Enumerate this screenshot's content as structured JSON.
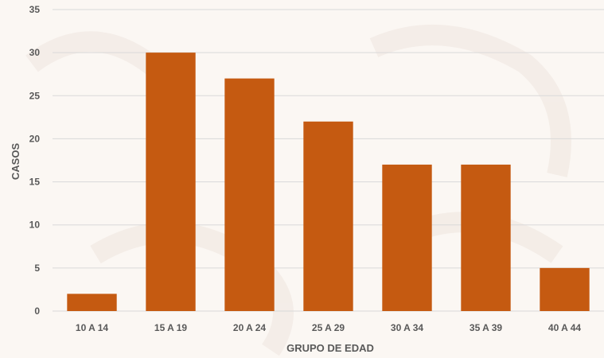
{
  "chart_data": {
    "type": "bar",
    "categories": [
      "10 A 14",
      "15 A 19",
      "20 A 24",
      "25 A 29",
      "30 A 34",
      "35 A 39",
      "40 A 44"
    ],
    "values": [
      2,
      30,
      27,
      22,
      17,
      17,
      5
    ],
    "xlabel": "GRUPO DE EDAD",
    "ylabel": "CASOS",
    "ylim": [
      0,
      35
    ],
    "yticks": [
      0,
      5,
      10,
      15,
      20,
      25,
      30,
      35
    ],
    "grid": true,
    "colors": {
      "bar": "#c55a11",
      "grid": "#d9d9d9",
      "text": "#595959",
      "background": "#fbf7f3"
    }
  }
}
